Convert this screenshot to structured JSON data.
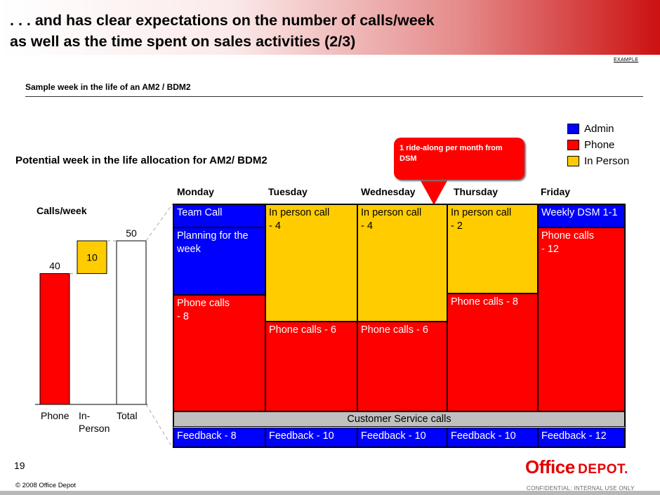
{
  "slide": {
    "title_line1": ". . . and has clear expectations on the number of calls/week",
    "title_line2": "as well as the time spent on sales activities (2/3)",
    "example_tag": "EXAMPLE",
    "subtitle": "Sample week in the life of an AM2 / BDM2",
    "chart_heading": "Potential week in the life allocation for AM2/ BDM2",
    "callout": "1 ride-along per month from DSM",
    "page_number": "19",
    "copyright": "© 2008 Office Depot",
    "logo_word1": "Office",
    "logo_word2": "DEPOT.",
    "confidential": "CONFIDENTIAL: INTERNAL USE ONLY"
  },
  "colors": {
    "admin": "#0000ff",
    "phone": "#ff0000",
    "in_person": "#ffcc00",
    "customer_service": "#c0c0c0"
  },
  "legend": [
    {
      "label": "Admin",
      "color": "#0000ff"
    },
    {
      "label": "Phone",
      "color": "#ff0000"
    },
    {
      "label": "In Person",
      "color": "#ffcc00"
    }
  ],
  "chart_data": {
    "type": "bar",
    "title": "Calls/week",
    "categories": [
      "Phone",
      "In-Person",
      "Total"
    ],
    "values": [
      40,
      10,
      50
    ],
    "value_labels": [
      "40",
      "10",
      "50"
    ],
    "waterfall": true
  },
  "schedule": {
    "days": [
      "Monday",
      "Tuesday",
      "Wednesday",
      "Thursday",
      "Friday"
    ],
    "monday": {
      "team_call": "Team Call",
      "planning": "Planning for the week",
      "phone_line1": "Phone calls",
      "phone_line2": "- 8"
    },
    "tuesday": {
      "in_person_line1": "In person call",
      "in_person_line2": "- 4",
      "phone": "Phone calls  - 6"
    },
    "wednesday": {
      "in_person_line1": "In person call",
      "in_person_line2": "- 4",
      "phone": "Phone calls  - 6"
    },
    "thursday": {
      "in_person_line1": "In person call",
      "in_person_line2": "- 2",
      "phone": "Phone calls  - 8"
    },
    "friday": {
      "dsm": "Weekly DSM 1-1",
      "phone_line1": "Phone calls",
      "phone_line2": "- 12"
    },
    "customer_service": "Customer Service calls",
    "feedback": [
      "Feedback - 8",
      "Feedback - 10",
      "Feedback - 10",
      "Feedback - 10",
      "Feedback - 12"
    ]
  }
}
